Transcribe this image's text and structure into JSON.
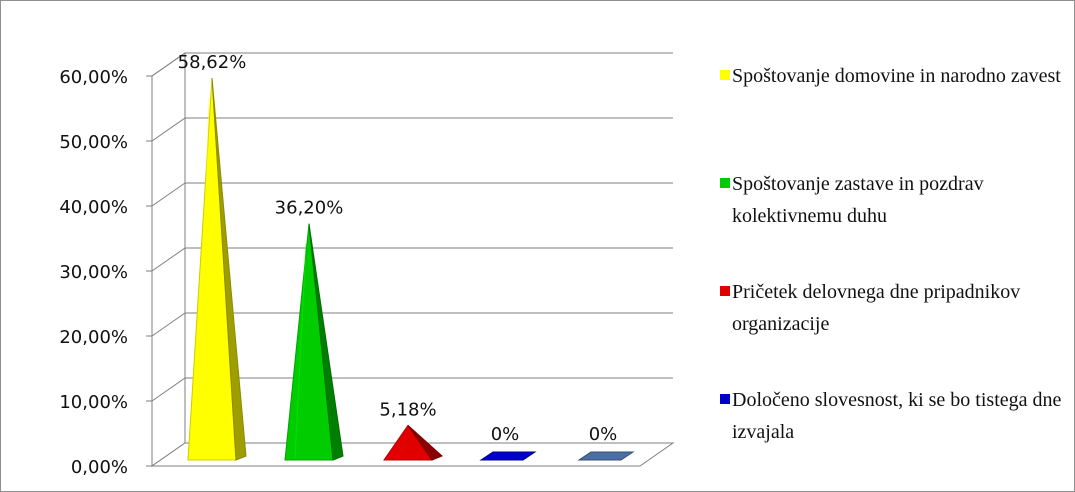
{
  "chart_data": {
    "type": "bar",
    "title": "",
    "xlabel": "",
    "ylabel": "",
    "ylim": [
      0,
      60
    ],
    "yticks": [
      "0,00%",
      "10,00%",
      "20,00%",
      "30,00%",
      "40,00%",
      "50,00%",
      "60,00%"
    ],
    "grid": true,
    "legend_position": "right",
    "categories": [
      "Spoštovanje domovine in narodno zavest",
      "Spoštovanje zastave in pozdrav kolektivnemu duhu",
      "Pričetek delovnega dne pripadnikov organizacije",
      "Določeno slovesnost, ki se bo tistega dne izvajala",
      ""
    ],
    "values": [
      58.62,
      36.2,
      5.18,
      0,
      0
    ],
    "data_labels": [
      "58,62%",
      "36,20%",
      "5,18%",
      "0%",
      "0%"
    ],
    "colors": [
      "#ffff00",
      "#00cc00",
      "#e00000",
      "#0000cc",
      "#4a6fa5"
    ]
  },
  "legend": [
    {
      "text": "Spoštovanje domovine in narodno zavest",
      "color": "#ffff00"
    },
    {
      "text": "Spoštovanje zastave in pozdrav kolektivnemu duhu",
      "color": "#00cc00"
    },
    {
      "text": "Pričetek delovnega dne pripadnikov organizacije",
      "color": "#e00000"
    },
    {
      "text": "Določeno slovesnost, ki se bo tistega dne izvajala",
      "color": "#0000cc"
    }
  ]
}
